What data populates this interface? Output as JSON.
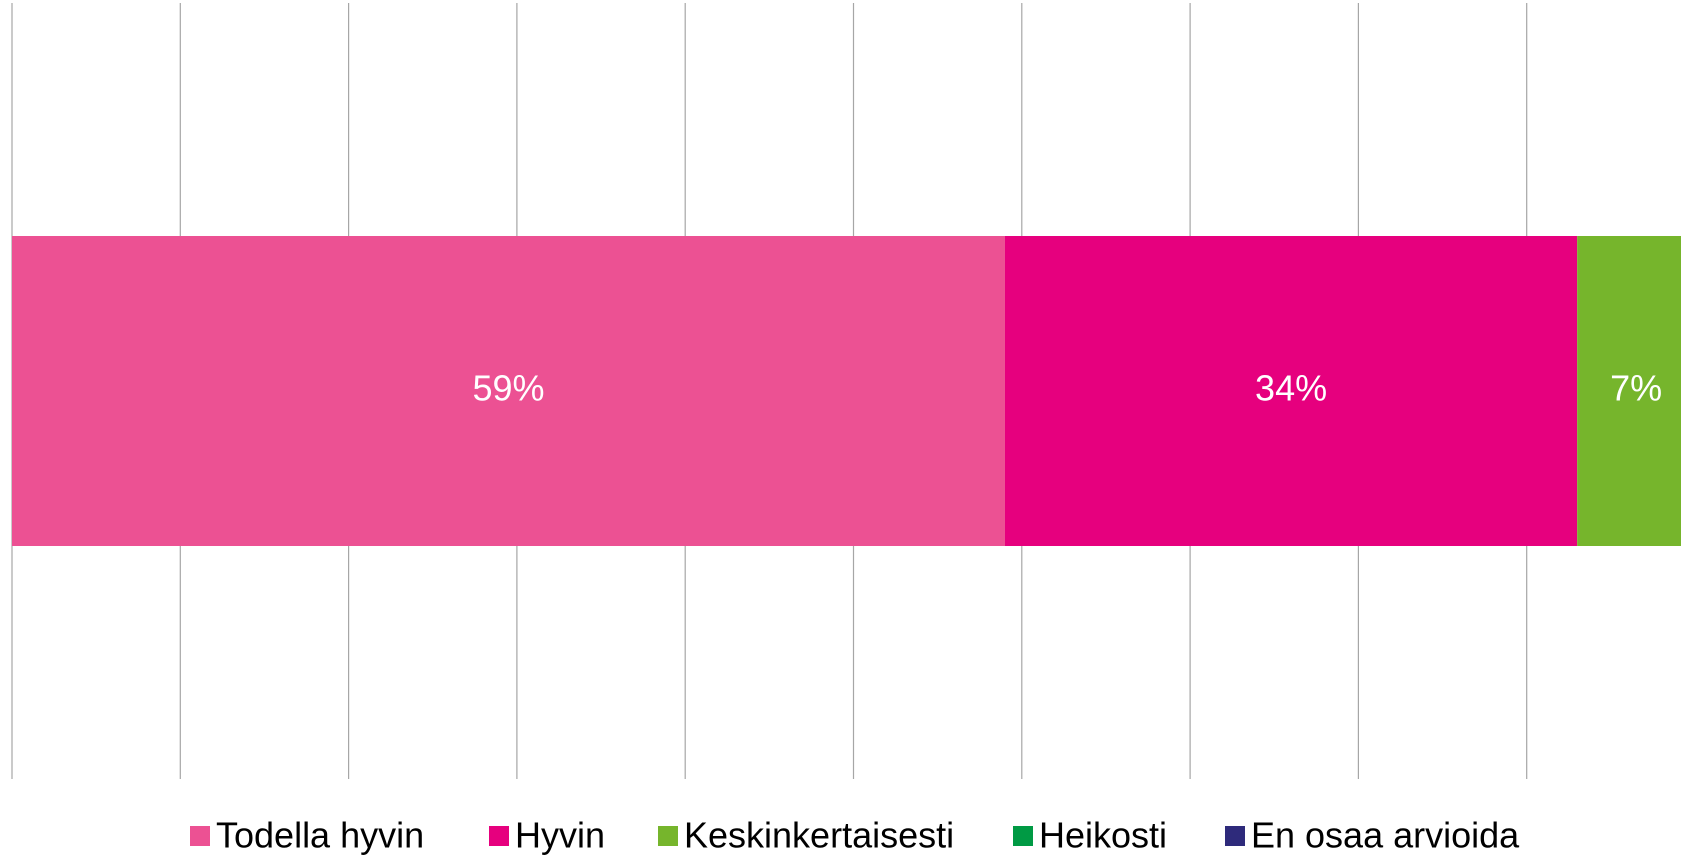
{
  "chart_data": {
    "type": "stacked-bar-horizontal",
    "categories": [
      null
    ],
    "series": [
      {
        "name": "Todella hyvin",
        "color": "#ec5193",
        "values": [
          59
        ],
        "value_labels": [
          "59%"
        ]
      },
      {
        "name": "Hyvin",
        "color": "#e6007e",
        "values": [
          34
        ],
        "value_labels": [
          "34%"
        ]
      },
      {
        "name": "Keskinkertaisesti",
        "color": "#76b52c",
        "values": [
          7
        ],
        "value_labels": [
          "7%"
        ]
      },
      {
        "name": "Heikosti",
        "color": "#009a44",
        "values": [
          0
        ]
      },
      {
        "name": "En osaa arvioida",
        "color": "#2e2a7b",
        "values": [
          0
        ]
      }
    ],
    "xlim": [
      0,
      100
    ],
    "xticks": [
      0,
      10,
      20,
      30,
      40,
      50,
      60,
      70,
      80,
      90,
      100
    ],
    "grid": true,
    "legend": "bottom"
  }
}
